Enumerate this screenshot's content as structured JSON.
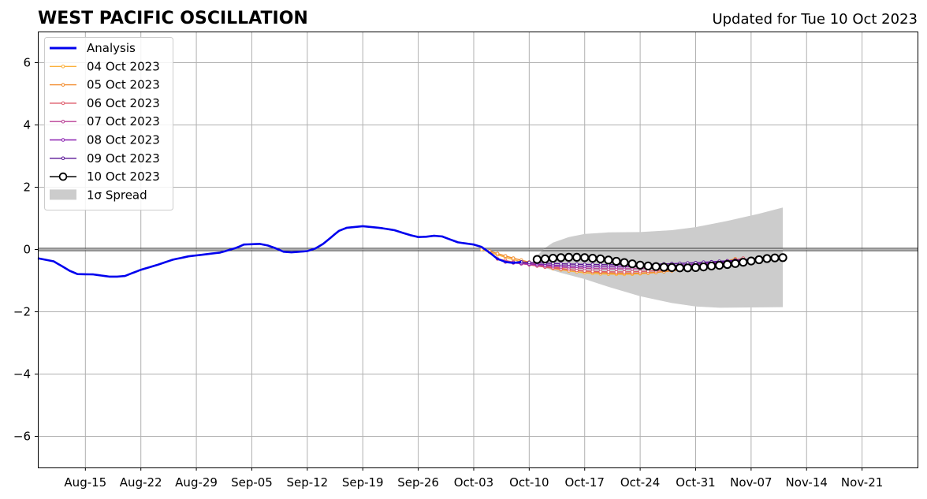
{
  "chart_data": {
    "type": "line",
    "title": "WEST PACIFIC OSCILLATION",
    "subtitle": "Updated for Tue 10 Oct 2023",
    "xlabel": "",
    "ylabel": "",
    "xlim": [
      "2023-08-09",
      "2023-11-28"
    ],
    "ylim": [
      -7,
      7
    ],
    "yticks": [
      -6,
      -4,
      -2,
      0,
      2,
      4,
      6
    ],
    "ytick_labels": [
      "−6",
      "−4",
      "−2",
      "0",
      "2",
      "4",
      "6"
    ],
    "xticks": [
      "2023-08-15",
      "2023-08-22",
      "2023-08-29",
      "2023-09-05",
      "2023-09-12",
      "2023-09-19",
      "2023-09-26",
      "2023-10-03",
      "2023-10-10",
      "2023-10-17",
      "2023-10-24",
      "2023-10-31",
      "2023-11-07",
      "2023-11-14",
      "2023-11-21"
    ],
    "xtick_labels": [
      "Aug-15",
      "Aug-22",
      "Aug-29",
      "Sep-05",
      "Sep-12",
      "Sep-19",
      "Sep-26",
      "Oct-03",
      "Oct-10",
      "Oct-17",
      "Oct-24",
      "Oct-31",
      "Nov-07",
      "Nov-14",
      "Nov-21"
    ],
    "grid": true,
    "legend_position": "upper-left",
    "zero_line": true,
    "analysis": {
      "name": "Analysis",
      "color": "#0000ee",
      "points": [
        [
          "2023-08-11",
          -0.38
        ],
        [
          "2023-08-13",
          -0.68
        ],
        [
          "2023-08-14",
          -0.79
        ],
        [
          "2023-08-16",
          -0.8
        ],
        [
          "2023-08-18",
          -0.87
        ],
        [
          "2023-08-19",
          -0.87
        ],
        [
          "2023-08-20",
          -0.85
        ],
        [
          "2023-08-22",
          -0.65
        ],
        [
          "2023-08-24",
          -0.5
        ],
        [
          "2023-08-26",
          -0.33
        ],
        [
          "2023-08-28",
          -0.22
        ],
        [
          "2023-08-30",
          -0.16
        ],
        [
          "2023-09-01",
          -0.1
        ],
        [
          "2023-09-03",
          0.05
        ],
        [
          "2023-09-04",
          0.16
        ],
        [
          "2023-09-06",
          0.18
        ],
        [
          "2023-09-07",
          0.13
        ],
        [
          "2023-09-08",
          0.04
        ],
        [
          "2023-09-09",
          -0.07
        ],
        [
          "2023-09-10",
          -0.09
        ],
        [
          "2023-09-12",
          -0.05
        ],
        [
          "2023-09-13",
          0.03
        ],
        [
          "2023-09-14",
          0.18
        ],
        [
          "2023-09-16",
          0.6
        ],
        [
          "2023-09-17",
          0.7
        ],
        [
          "2023-09-19",
          0.75
        ],
        [
          "2023-09-21",
          0.7
        ],
        [
          "2023-09-23",
          0.62
        ],
        [
          "2023-09-25",
          0.46
        ],
        [
          "2023-09-26",
          0.4
        ],
        [
          "2023-09-27",
          0.41
        ],
        [
          "2023-09-28",
          0.44
        ],
        [
          "2023-09-29",
          0.42
        ],
        [
          "2023-10-01",
          0.23
        ],
        [
          "2023-10-03",
          0.16
        ],
        [
          "2023-10-04",
          0.08
        ],
        [
          "2023-10-05",
          -0.1
        ],
        [
          "2023-10-06",
          -0.3
        ],
        [
          "2023-10-07",
          -0.4
        ],
        [
          "2023-10-08",
          -0.43
        ],
        [
          "2023-10-09",
          -0.4
        ]
      ]
    },
    "series": [
      {
        "name": "04 Oct 2023",
        "color": "#fbb13c",
        "start": "2023-10-04",
        "start_value": 0.0,
        "end": "2023-10-28",
        "mid": -0.72,
        "end_value": -0.68
      },
      {
        "name": "05 Oct 2023",
        "color": "#f18b2c",
        "start": "2023-10-05",
        "start_value": -0.05,
        "end": "2023-11-05",
        "mid": -0.76,
        "end_value": -0.3
      },
      {
        "name": "06 Oct 2023",
        "color": "#de5a6a",
        "start": "2023-10-06",
        "start_value": -0.3,
        "end": "2023-11-06",
        "mid": -0.72,
        "end_value": -0.28
      },
      {
        "name": "07 Oct 2023",
        "color": "#b93f96",
        "start": "2023-10-07",
        "start_value": -0.4,
        "end": "2023-11-07",
        "mid": -0.62,
        "end_value": -0.3
      },
      {
        "name": "08 Oct 2023",
        "color": "#8a1fb0",
        "start": "2023-10-08",
        "start_value": -0.42,
        "end": "2023-11-08",
        "mid": -0.55,
        "end_value": -0.28
      },
      {
        "name": "09 Oct 2023",
        "color": "#5a1496",
        "start": "2023-10-09",
        "start_value": -0.4,
        "end": "2023-11-09",
        "mid": -0.48,
        "end_value": -0.26
      }
    ],
    "forecast": {
      "name": "10 Oct 2023",
      "color": "#000000",
      "points": [
        [
          "2023-10-11",
          -0.32
        ],
        [
          "2023-10-12",
          -0.3
        ],
        [
          "2023-10-13",
          -0.28
        ],
        [
          "2023-10-14",
          -0.26
        ],
        [
          "2023-10-15",
          -0.25
        ],
        [
          "2023-10-16",
          -0.25
        ],
        [
          "2023-10-17",
          -0.26
        ],
        [
          "2023-10-18",
          -0.28
        ],
        [
          "2023-10-19",
          -0.3
        ],
        [
          "2023-10-20",
          -0.34
        ],
        [
          "2023-10-21",
          -0.38
        ],
        [
          "2023-10-22",
          -0.42
        ],
        [
          "2023-10-23",
          -0.46
        ],
        [
          "2023-10-24",
          -0.5
        ],
        [
          "2023-10-25",
          -0.53
        ],
        [
          "2023-10-26",
          -0.55
        ],
        [
          "2023-10-27",
          -0.57
        ],
        [
          "2023-10-28",
          -0.58
        ],
        [
          "2023-10-29",
          -0.59
        ],
        [
          "2023-10-30",
          -0.59
        ],
        [
          "2023-10-31",
          -0.58
        ],
        [
          "2023-11-01",
          -0.56
        ],
        [
          "2023-11-02",
          -0.53
        ],
        [
          "2023-11-03",
          -0.51
        ],
        [
          "2023-11-04",
          -0.48
        ],
        [
          "2023-11-05",
          -0.45
        ],
        [
          "2023-11-06",
          -0.41
        ],
        [
          "2023-11-07",
          -0.37
        ],
        [
          "2023-11-08",
          -0.33
        ],
        [
          "2023-11-09",
          -0.29
        ],
        [
          "2023-11-10",
          -0.27
        ],
        [
          "2023-11-11",
          -0.26
        ]
      ]
    },
    "spread": {
      "name": "1σ Spread",
      "color": "#cccccc",
      "upper": [
        [
          "2023-10-11",
          -0.2
        ],
        [
          "2023-10-12",
          0.05
        ],
        [
          "2023-10-13",
          0.22
        ],
        [
          "2023-10-15",
          0.4
        ],
        [
          "2023-10-17",
          0.5
        ],
        [
          "2023-10-20",
          0.55
        ],
        [
          "2023-10-24",
          0.56
        ],
        [
          "2023-10-28",
          0.62
        ],
        [
          "2023-10-31",
          0.72
        ],
        [
          "2023-11-04",
          0.92
        ],
        [
          "2023-11-08",
          1.15
        ],
        [
          "2023-11-11",
          1.35
        ]
      ],
      "lower": [
        [
          "2023-10-11",
          -0.52
        ],
        [
          "2023-10-14",
          -0.75
        ],
        [
          "2023-10-17",
          -0.95
        ],
        [
          "2023-10-20",
          -1.2
        ],
        [
          "2023-10-24",
          -1.5
        ],
        [
          "2023-10-28",
          -1.72
        ],
        [
          "2023-10-31",
          -1.83
        ],
        [
          "2023-11-03",
          -1.87
        ],
        [
          "2023-11-07",
          -1.86
        ],
        [
          "2023-11-11",
          -1.85
        ]
      ]
    },
    "legend": [
      {
        "label": "Analysis",
        "kind": "thick-line",
        "color": "#0000ee"
      },
      {
        "label": "04 Oct 2023",
        "kind": "small-marker-line",
        "color": "#fbb13c"
      },
      {
        "label": "05 Oct 2023",
        "kind": "small-marker-line",
        "color": "#f18b2c"
      },
      {
        "label": "06 Oct 2023",
        "kind": "small-marker-line",
        "color": "#de5a6a"
      },
      {
        "label": "07 Oct 2023",
        "kind": "small-marker-line",
        "color": "#b93f96"
      },
      {
        "label": "08 Oct 2023",
        "kind": "small-marker-line",
        "color": "#8a1fb0"
      },
      {
        "label": "09 Oct 2023",
        "kind": "small-marker-line",
        "color": "#5a1496"
      },
      {
        "label": "10 Oct 2023",
        "kind": "open-circle-line",
        "color": "#000000"
      },
      {
        "label": "1σ Spread",
        "kind": "patch",
        "color": "#cccccc"
      }
    ]
  }
}
